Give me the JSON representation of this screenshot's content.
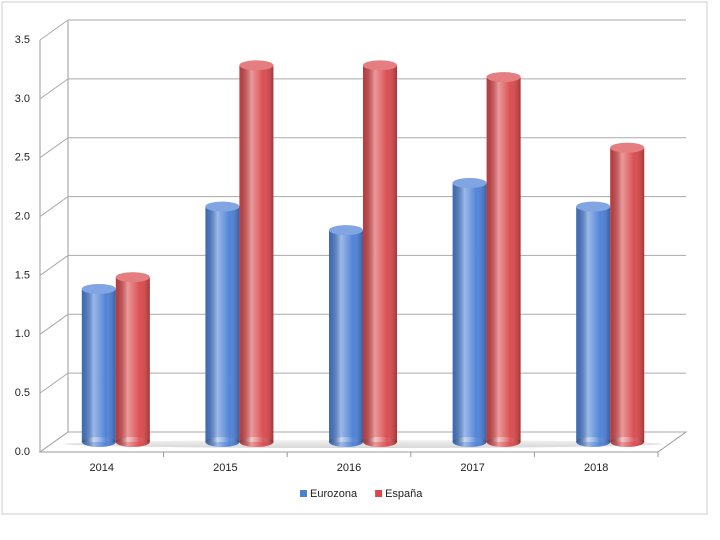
{
  "chart_data": {
    "type": "bar3d",
    "categories": [
      "2014",
      "2015",
      "2016",
      "2017",
      "2018"
    ],
    "series": [
      {
        "name": "Eurozona",
        "color": "#4a7fd6",
        "values": [
          1.3,
          2.0,
          1.8,
          2.2,
          2.0
        ]
      },
      {
        "name": "España",
        "color": "#d9474a",
        "values": [
          1.4,
          3.2,
          3.2,
          3.1,
          2.5
        ]
      }
    ],
    "ylim": [
      0,
      3.5
    ],
    "yticks": [
      {
        "value": 0,
        "label": "0.0"
      },
      0.5,
      {
        "value": 1,
        "label": "1.0"
      },
      1.5,
      {
        "value": 2,
        "label": "2.0"
      },
      2.5,
      {
        "value": 3,
        "label": "3.0"
      },
      3.5
    ],
    "grid": true,
    "legend": "bottom"
  }
}
